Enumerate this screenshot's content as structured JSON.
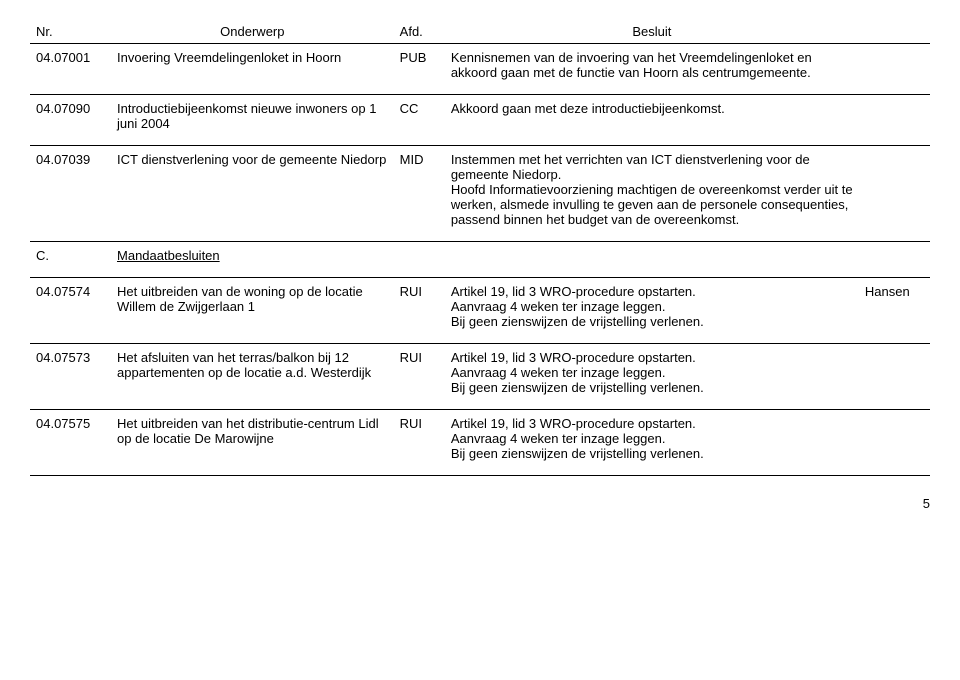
{
  "headers": {
    "nr": "Nr.",
    "subject": "Onderwerp",
    "afd": "Afd.",
    "besluit": "Besluit"
  },
  "rows": [
    {
      "nr": "04.07001",
      "subject": "Invoering Vreemdelingenloket in Hoorn",
      "afd": "PUB",
      "besluit": "Kennisnemen van de invoering van het Vreemdelingenloket en akkoord gaan met de functie van Hoorn als centrumgemeente.",
      "extra": ""
    },
    {
      "nr": "04.07090",
      "subject": "Introductiebijeenkomst nieuwe inwoners op 1 juni 2004",
      "afd": "CC",
      "besluit": "Akkoord gaan met deze introductiebijeenkomst.",
      "extra": ""
    },
    {
      "nr": "04.07039",
      "subject": "ICT dienstverlening voor de gemeente Niedorp",
      "afd": "MID",
      "besluit": "Instemmen met het verrichten van ICT dienstverlening voor de gemeente Niedorp.\nHoofd Informatievoorziening machtigen de overeenkomst verder uit te werken, alsmede invulling te geven aan de personele consequenties, passend binnen het budget van de overeenkomst.",
      "extra": ""
    }
  ],
  "section": {
    "nr": "C.",
    "label": "Mandaatbesluiten"
  },
  "rows2": [
    {
      "nr": "04.07574",
      "subject": "Het uitbreiden van de woning op de locatie Willem de Zwijgerlaan 1",
      "afd": "RUI",
      "besluit": "Artikel 19, lid 3 WRO-procedure opstarten.\nAanvraag 4 weken ter inzage leggen.\nBij geen zienswijzen de vrijstelling verlenen.",
      "extra": "Hansen"
    },
    {
      "nr": "04.07573",
      "subject": "Het afsluiten van het terras/balkon bij 12 appartementen op de locatie a.d. Westerdijk",
      "afd": "RUI",
      "besluit": "Artikel 19, lid 3 WRO-procedure opstarten.\nAanvraag 4 weken ter inzage leggen.\nBij geen zienswijzen de vrijstelling verlenen.",
      "extra": ""
    },
    {
      "nr": "04.07575",
      "subject": "Het uitbreiden van het distributie-centrum Lidl op de locatie De Marowijne",
      "afd": "RUI",
      "besluit": "Artikel 19, lid 3 WRO-procedure opstarten.\nAanvraag 4 weken ter inzage leggen.\nBij geen zienswijzen de vrijstelling verlenen.",
      "extra": ""
    }
  ],
  "pageNumber": "5"
}
